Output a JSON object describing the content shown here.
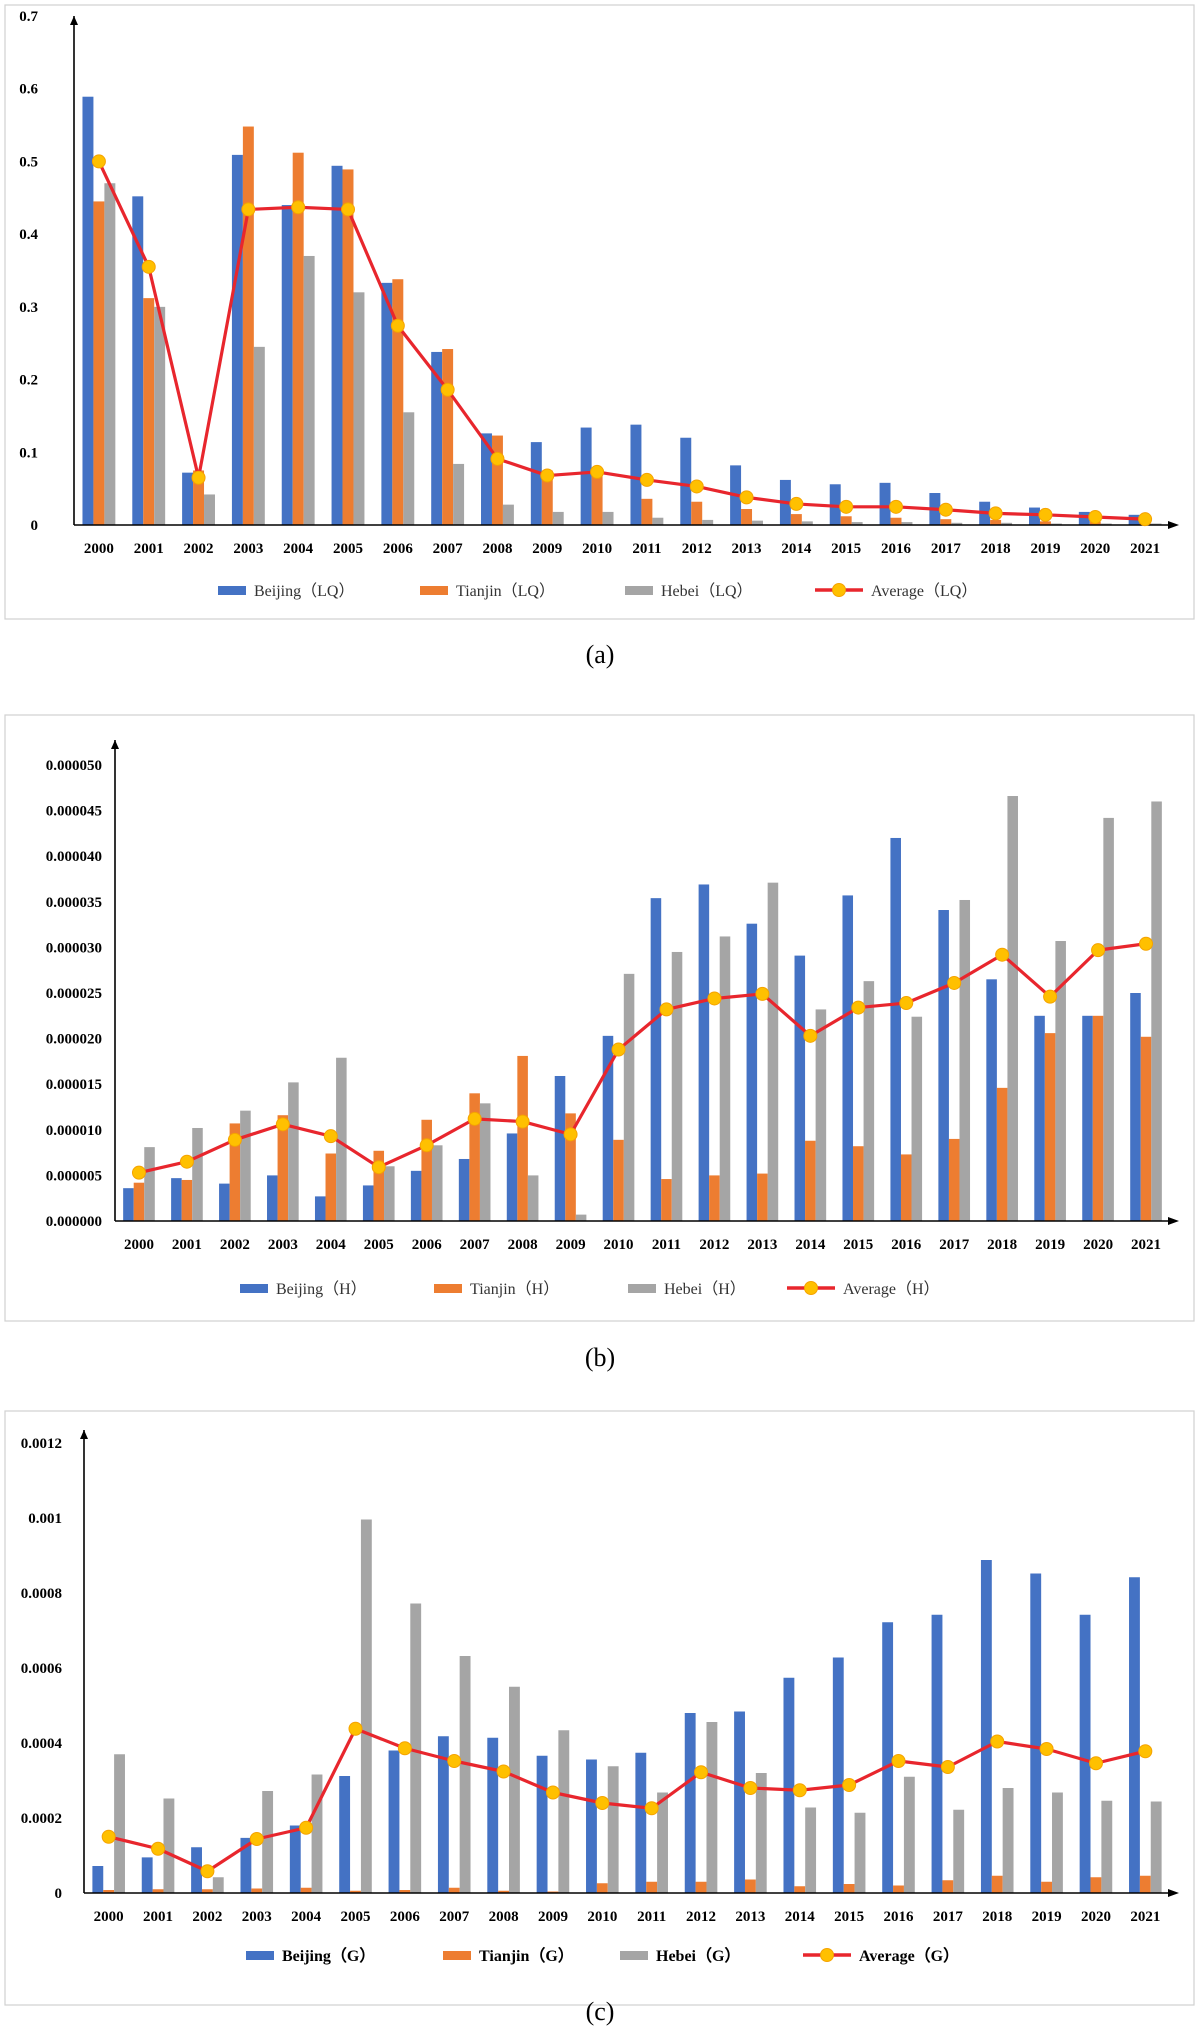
{
  "colors": {
    "beijing": "#4472C4",
    "tianjin": "#ED7D31",
    "hebei": "#A5A5A5",
    "average_line": "#E8262D",
    "average_marker": "#FFC000"
  },
  "chart_data": [
    {
      "type": "bar",
      "caption": "(a)",
      "categories": [
        "2000",
        "2001",
        "2002",
        "2003",
        "2004",
        "2005",
        "2006",
        "2007",
        "2008",
        "2009",
        "2010",
        "2011",
        "2012",
        "2013",
        "2014",
        "2015",
        "2016",
        "2017",
        "2018",
        "2019",
        "2020",
        "2021"
      ],
      "ylim": [
        0,
        0.7
      ],
      "yticks": [
        "0",
        "0.1",
        "0.2",
        "0.3",
        "0.4",
        "0.5",
        "0.6",
        "0.7"
      ],
      "ytick_values": [
        0,
        0.1,
        0.2,
        0.3,
        0.4,
        0.5,
        0.6,
        0.7
      ],
      "legend_bold": false,
      "series": [
        {
          "name": "Beijing（LQ）",
          "kind": "bar",
          "color": "#4472C4",
          "values": [
            0.589,
            0.452,
            0.072,
            0.509,
            0.44,
            0.494,
            0.333,
            0.238,
            0.126,
            0.114,
            0.134,
            0.138,
            0.12,
            0.082,
            0.062,
            0.056,
            0.058,
            0.044,
            0.032,
            0.024,
            0.018,
            0.014
          ]
        },
        {
          "name": "Tianjin（LQ）",
          "kind": "bar",
          "color": "#ED7D31",
          "values": [
            0.445,
            0.312,
            0.075,
            0.548,
            0.512,
            0.489,
            0.338,
            0.242,
            0.123,
            0.075,
            0.072,
            0.036,
            0.032,
            0.022,
            0.015,
            0.012,
            0.01,
            0.008,
            0.007,
            0.005,
            0.004,
            0.003
          ]
        },
        {
          "name": "Hebei（LQ）",
          "kind": "bar",
          "color": "#A5A5A5",
          "values": [
            0.47,
            0.3,
            0.042,
            0.245,
            0.37,
            0.32,
            0.155,
            0.084,
            0.028,
            0.018,
            0.018,
            0.01,
            0.007,
            0.006,
            0.005,
            0.004,
            0.004,
            0.003,
            0.003,
            0.002,
            0.002,
            0.002
          ]
        },
        {
          "name": "Average（LQ）",
          "kind": "line",
          "color": "#E8262D",
          "values": [
            0.5,
            0.355,
            0.065,
            0.434,
            0.437,
            0.434,
            0.274,
            0.186,
            0.091,
            0.068,
            0.073,
            0.062,
            0.053,
            0.038,
            0.029,
            0.025,
            0.025,
            0.021,
            0.016,
            0.014,
            0.011,
            0.008
          ]
        }
      ]
    },
    {
      "type": "bar",
      "caption": "(b)",
      "categories": [
        "2000",
        "2001",
        "2002",
        "2003",
        "2004",
        "2005",
        "2006",
        "2007",
        "2008",
        "2009",
        "2010",
        "2011",
        "2012",
        "2013",
        "2014",
        "2015",
        "2016",
        "2017",
        "2018",
        "2019",
        "2020",
        "2021"
      ],
      "ylim": [
        0,
        5e-05
      ],
      "yticks": [
        "0.000000",
        "0.000005",
        "0.000010",
        "0.000015",
        "0.000020",
        "0.000025",
        "0.000030",
        "0.000035",
        "0.000040",
        "0.000045",
        "0.000050"
      ],
      "ytick_values": [
        0,
        5e-06,
        1e-05,
        1.5e-05,
        2e-05,
        2.5e-05,
        3e-05,
        3.5e-05,
        4e-05,
        4.5e-05,
        5e-05
      ],
      "legend_bold": false,
      "series": [
        {
          "name": "Beijing（H）",
          "kind": "bar",
          "color": "#4472C4",
          "values": [
            3.6e-06,
            4.7e-06,
            4.1e-06,
            5e-06,
            2.7e-06,
            3.9e-06,
            5.5e-06,
            6.8e-06,
            9.6e-06,
            1.59e-05,
            2.03e-05,
            3.54e-05,
            3.69e-05,
            3.26e-05,
            2.91e-05,
            3.57e-05,
            4.2e-05,
            3.41e-05,
            2.65e-05,
            2.25e-05,
            2.25e-05,
            2.5e-05
          ]
        },
        {
          "name": "Tianjin（H）",
          "kind": "bar",
          "color": "#ED7D31",
          "values": [
            4.2e-06,
            4.5e-06,
            1.07e-05,
            1.16e-05,
            7.4e-06,
            7.7e-06,
            1.11e-05,
            1.4e-05,
            1.81e-05,
            1.18e-05,
            8.9e-06,
            4.6e-06,
            5e-06,
            5.2e-06,
            8.8e-06,
            8.2e-06,
            7.3e-06,
            9e-06,
            1.46e-05,
            2.06e-05,
            2.25e-05,
            2.02e-05
          ]
        },
        {
          "name": "Hebei（H）",
          "kind": "bar",
          "color": "#A5A5A5",
          "values": [
            8.1e-06,
            1.02e-05,
            1.21e-05,
            1.52e-05,
            1.79e-05,
            6e-06,
            8.3e-06,
            1.29e-05,
            5e-06,
            7e-07,
            2.71e-05,
            2.95e-05,
            3.12e-05,
            3.71e-05,
            2.32e-05,
            2.63e-05,
            2.24e-05,
            3.52e-05,
            4.66e-05,
            3.07e-05,
            4.42e-05,
            4.6e-05
          ]
        },
        {
          "name": "Average（H）",
          "kind": "line",
          "color": "#E8262D",
          "values": [
            5.3e-06,
            6.5e-06,
            8.9e-06,
            1.06e-05,
            9.3e-06,
            5.9e-06,
            8.3e-06,
            1.12e-05,
            1.09e-05,
            9.5e-06,
            1.88e-05,
            2.32e-05,
            2.44e-05,
            2.49e-05,
            2.03e-05,
            2.34e-05,
            2.39e-05,
            2.61e-05,
            2.92e-05,
            2.46e-05,
            2.97e-05,
            3.04e-05
          ]
        }
      ]
    },
    {
      "type": "bar",
      "caption": "(c)",
      "categories": [
        "2000",
        "2001",
        "2002",
        "2003",
        "2004",
        "2005",
        "2006",
        "2007",
        "2008",
        "2009",
        "2010",
        "2011",
        "2012",
        "2013",
        "2014",
        "2015",
        "2016",
        "2017",
        "2018",
        "2019",
        "2020",
        "2021"
      ],
      "ylim": [
        0,
        0.0012
      ],
      "yticks": [
        "0",
        "0.0002",
        "0.0004",
        "0.0006",
        "0.0008",
        "0.001",
        "0.0012"
      ],
      "ytick_values": [
        0,
        0.0002,
        0.0004,
        0.0006,
        0.0008,
        0.001,
        0.0012
      ],
      "legend_bold": true,
      "series": [
        {
          "name": "Beijing（G）",
          "kind": "bar",
          "color": "#4472C4",
          "values": [
            7.2e-05,
            9.5e-05,
            0.000122,
            0.000147,
            0.00018,
            0.000312,
            0.00038,
            0.000418,
            0.000414,
            0.000366,
            0.000356,
            0.000374,
            0.00048,
            0.000484,
            0.000574,
            0.000628,
            0.000722,
            0.000742,
            0.000888,
            0.000852,
            0.000742,
            0.000842
          ]
        },
        {
          "name": "Tianjin（G）",
          "kind": "bar",
          "color": "#ED7D31",
          "values": [
            8e-06,
            1e-05,
            1e-05,
            1.2e-05,
            1.4e-05,
            6e-06,
            8e-06,
            1.4e-05,
            6e-06,
            4e-06,
            2.6e-05,
            3e-05,
            3e-05,
            3.6e-05,
            1.8e-05,
            2.4e-05,
            2e-05,
            3.4e-05,
            4.6e-05,
            3e-05,
            4.2e-05,
            4.6e-05
          ]
        },
        {
          "name": "Hebei（G）",
          "kind": "bar",
          "color": "#A5A5A5",
          "values": [
            0.00037,
            0.000252,
            4.2e-05,
            0.000272,
            0.000316,
            0.000996,
            0.000772,
            0.000632,
            0.00055,
            0.000434,
            0.000338,
            0.000268,
            0.000456,
            0.00032,
            0.000228,
            0.000214,
            0.00031,
            0.000222,
            0.00028,
            0.000268,
            0.000246,
            0.000244
          ]
        },
        {
          "name": "Average（G）",
          "kind": "line",
          "color": "#E8262D",
          "values": [
            0.00015,
            0.000118,
            5.8e-05,
            0.000144,
            0.000174,
            0.000438,
            0.000386,
            0.000352,
            0.000324,
            0.000268,
            0.00024,
            0.000226,
            0.000322,
            0.00028,
            0.000274,
            0.000288,
            0.000352,
            0.000336,
            0.000404,
            0.000384,
            0.000346,
            0.000378
          ]
        }
      ]
    }
  ]
}
